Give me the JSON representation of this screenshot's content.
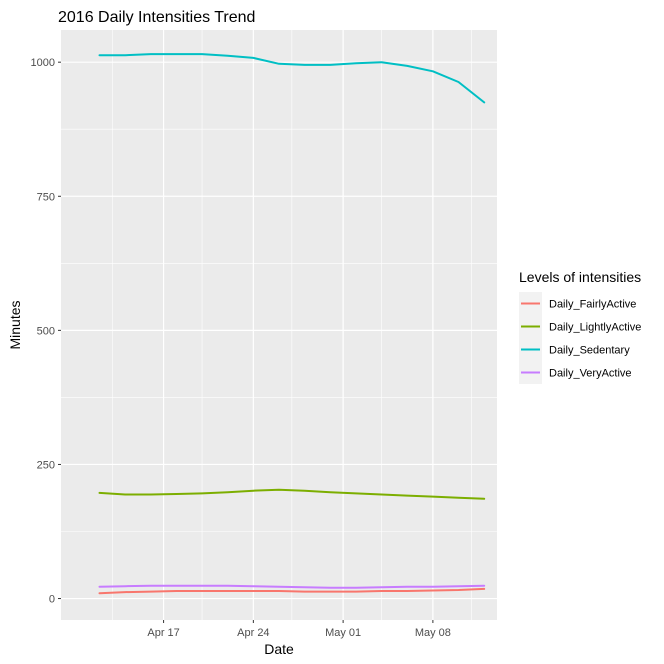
{
  "chart_data": {
    "type": "line",
    "title": "2016 Daily Intensities Trend",
    "xlabel": "Date",
    "ylabel": "Minutes",
    "x_range": [
      "2016-04-09",
      "2016-05-13"
    ],
    "x_ticks": [
      {
        "date": "2016-04-17",
        "label": "Apr 17"
      },
      {
        "date": "2016-04-24",
        "label": "Apr 24"
      },
      {
        "date": "2016-05-01",
        "label": "May 01"
      },
      {
        "date": "2016-05-08",
        "label": "May 08"
      }
    ],
    "ylim": [
      -40,
      1060
    ],
    "y_ticks": [
      0,
      250,
      500,
      750,
      1000
    ],
    "grid": true,
    "legend": {
      "title": "Levels of intensities",
      "position": "right"
    },
    "x": [
      "2016-04-12",
      "2016-04-14",
      "2016-04-16",
      "2016-04-18",
      "2016-04-20",
      "2016-04-22",
      "2016-04-24",
      "2016-04-26",
      "2016-04-28",
      "2016-04-30",
      "2016-05-02",
      "2016-05-04",
      "2016-05-06",
      "2016-05-08",
      "2016-05-10",
      "2016-05-12"
    ],
    "series": [
      {
        "name": "Daily_FairlyActive",
        "color": "#F8766D",
        "values": [
          10,
          12,
          13,
          14,
          14,
          14,
          14,
          14,
          13,
          13,
          13,
          14,
          14,
          15,
          16,
          18
        ]
      },
      {
        "name": "Daily_LightlyActive",
        "color": "#7CAE00",
        "values": [
          197,
          194,
          194,
          195,
          196,
          198,
          201,
          203,
          201,
          198,
          196,
          194,
          192,
          190,
          188,
          186
        ]
      },
      {
        "name": "Daily_Sedentary",
        "color": "#00BFC4",
        "values": [
          1013,
          1013,
          1015,
          1015,
          1015,
          1012,
          1008,
          997,
          995,
          995,
          998,
          1000,
          993,
          983,
          963,
          925
        ]
      },
      {
        "name": "Daily_VeryActive",
        "color": "#C77CFF",
        "values": [
          22,
          23,
          24,
          24,
          24,
          24,
          23,
          22,
          21,
          20,
          20,
          21,
          22,
          22,
          23,
          24
        ]
      }
    ]
  }
}
